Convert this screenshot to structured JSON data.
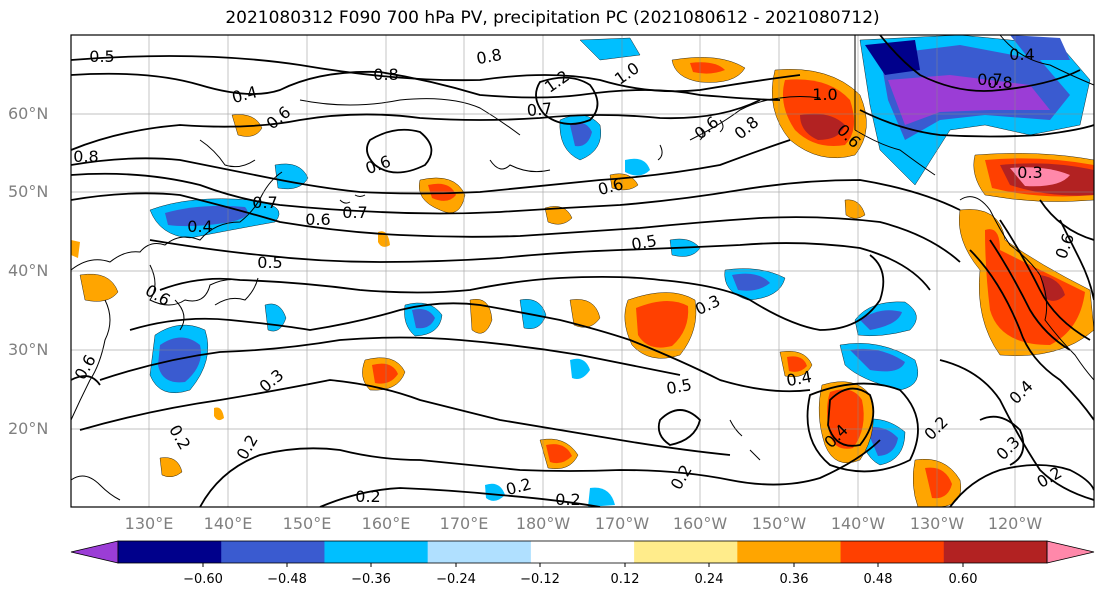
{
  "title": "2021080312 F090 700 hPa PV, precipitation PC (2021080612 - 2021080712)",
  "map": {
    "lat_labels": [
      "60°N",
      "50°N",
      "40°N",
      "30°N",
      "20°N"
    ],
    "lon_labels": [
      "130°E",
      "140°E",
      "150°E",
      "160°E",
      "170°E",
      "180°W",
      "170°W",
      "160°W",
      "150°W",
      "140°W",
      "130°W",
      "120°W"
    ],
    "contour_labels": [
      "0.5",
      "0.8",
      "0.8",
      "0.4",
      "0.6",
      "0.7",
      "1.2",
      "1.0",
      "0.6",
      "0.8",
      "0.6",
      "0.7",
      "0.6",
      "0.8",
      "1.0",
      "0.8",
      "0.7",
      "0.6",
      "0.4",
      "0.5",
      "0.5",
      "0.3",
      "0.6",
      "0.6",
      "0.3",
      "0.5",
      "0.4",
      "0.2",
      "0.2",
      "0.2",
      "0.2",
      "0.2",
      "0.2",
      "0.4",
      "0.4",
      "0.2",
      "0.3",
      "0.2",
      "0.3",
      "0.4",
      "0.7",
      "0.6",
      "0.6"
    ]
  },
  "colorbar": {
    "colors": [
      "#9b3dd6",
      "#00008b",
      "#3a5bd0",
      "#00bfff",
      "#b0e0ff",
      "#ffffff",
      "#ffec8b",
      "#ffa500",
      "#ff4000",
      "#b22222",
      "#ff88aa"
    ],
    "tick_labels": [
      "−0.60",
      "−0.48",
      "−0.36",
      "−0.24",
      "−0.12",
      "0.12",
      "0.24",
      "0.36",
      "0.48",
      "0.60"
    ]
  }
}
